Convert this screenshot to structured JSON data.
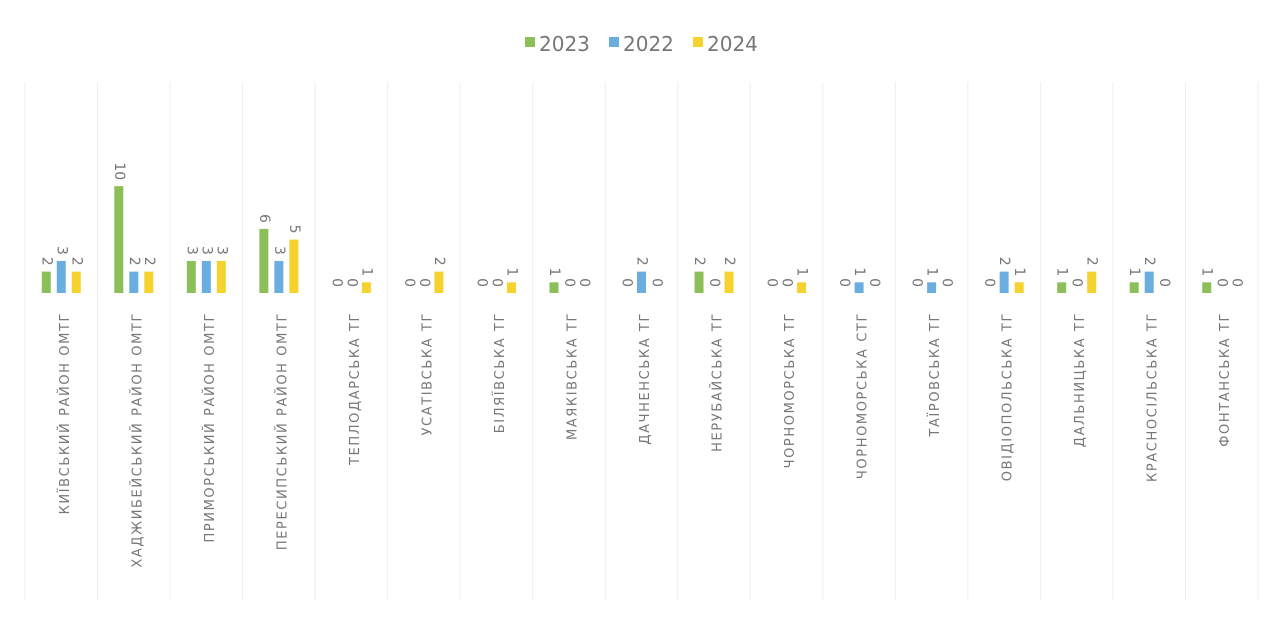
{
  "chart_data": {
    "type": "bar",
    "categories": [
      "КИЇВСЬКИЙ РАЙОН ОМТГ",
      "ХАДЖИБЕЙСЬКИЙ РАЙОН ОМТГ",
      "ПРИМОРСЬКИЙ РАЙОН ОМТГ",
      "ПЕРЕСИПСЬКИЙ РАЙОН ОМТГ",
      "ТЕПЛОДАРСЬКА ТГ",
      "УСАТІВСЬКА ТГ",
      "БІЛЯЇВСЬКА ТГ",
      "МАЯКІВСЬКА ТГ",
      "ДАЧНЕНСЬКА ТГ",
      "НЕРУБАЙСЬКА ТГ",
      "ЧОРНОМОРСЬКА ТГ",
      "ЧОРНОМОРСЬКА СТГ",
      "ТАЇРОВСЬКА ТГ",
      "ОВІДІОПОЛЬСЬКА ТГ",
      "ДАЛЬНИЦЬКА ТГ",
      "КРАСНОСІЛЬСЬКА ТГ",
      "ФОНТАНСЬКА ТГ"
    ],
    "series": [
      {
        "name": "2023",
        "color": "#8cbf5a",
        "values": [
          2,
          10,
          3,
          6,
          0,
          0,
          0,
          1,
          0,
          2,
          0,
          0,
          0,
          0,
          1,
          1,
          1
        ]
      },
      {
        "name": "2022",
        "color": "#6aaee0",
        "values": [
          3,
          2,
          3,
          3,
          0,
          0,
          0,
          0,
          2,
          0,
          0,
          1,
          1,
          2,
          0,
          2,
          0
        ]
      },
      {
        "name": "2024",
        "color": "#f5d22e",
        "values": [
          2,
          2,
          3,
          5,
          1,
          2,
          1,
          0,
          0,
          2,
          1,
          0,
          0,
          1,
          2,
          0,
          0
        ]
      }
    ],
    "ylim": [
      0,
      19
    ],
    "legend": "top"
  }
}
